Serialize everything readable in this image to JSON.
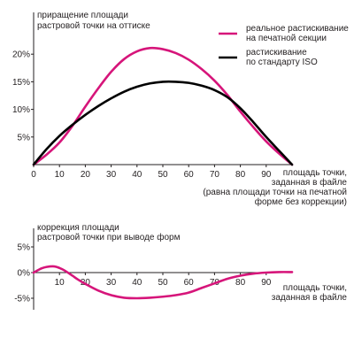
{
  "chart_data": [
    {
      "type": "line",
      "ylabel": [
        "приращение площади",
        "растровой точки на оттиске"
      ],
      "xlabel": [
        "площадь точки,",
        "заданная в файле",
        "(равна площади точки на печатной",
        "форме без коррекции)"
      ],
      "xlim": [
        0,
        100
      ],
      "ylim": [
        0,
        25
      ],
      "x_ticks": [
        0,
        10,
        20,
        30,
        40,
        50,
        60,
        70,
        80,
        90
      ],
      "y_ticks": [
        {
          "value": 5,
          "label": "5%"
        },
        {
          "value": 10,
          "label": "10%"
        },
        {
          "value": 15,
          "label": "15%"
        },
        {
          "value": 20,
          "label": "20%"
        }
      ],
      "legend_position": "top-right",
      "series": [
        {
          "name": [
            "реальное растискивание",
            "на печатной секции"
          ],
          "color": "#d6157a",
          "x": [
            0,
            5,
            10,
            15,
            20,
            25,
            30,
            35,
            40,
            45,
            50,
            55,
            60,
            65,
            70,
            75,
            80,
            85,
            90,
            95,
            100
          ],
          "y": [
            0,
            1.8,
            4.0,
            7.0,
            10.5,
            13.8,
            16.8,
            19.1,
            20.5,
            21.1,
            20.9,
            20.2,
            19.0,
            17.3,
            15.2,
            12.6,
            9.6,
            6.8,
            4.2,
            2.0,
            0
          ]
        },
        {
          "name": [
            "растискивание",
            "по стандарту ISO"
          ],
          "color": "#000000",
          "x": [
            0,
            5,
            10,
            15,
            20,
            25,
            30,
            35,
            40,
            45,
            50,
            55,
            60,
            65,
            70,
            75,
            80,
            85,
            90,
            95,
            100
          ],
          "y": [
            0,
            2.8,
            5.2,
            7.2,
            9.0,
            10.6,
            12.0,
            13.2,
            14.1,
            14.7,
            15.0,
            15.0,
            14.8,
            14.3,
            13.5,
            12.2,
            10.2,
            7.7,
            5.0,
            2.5,
            0
          ]
        }
      ]
    },
    {
      "type": "line",
      "ylabel": [
        "коррекция площади",
        "растровой точки при выводе форм"
      ],
      "xlabel": [
        "площадь точки,",
        "заданная в файле"
      ],
      "xlim": [
        0,
        100
      ],
      "ylim": [
        -7,
        7
      ],
      "x_ticks": [
        10,
        20,
        30,
        40,
        50,
        60,
        70,
        80,
        90
      ],
      "y_ticks": [
        {
          "value": 5,
          "label": "5%"
        },
        {
          "value": 0,
          "label": "0%"
        },
        {
          "value": -5,
          "label": "-5%"
        }
      ],
      "series": [
        {
          "color": "#d6157a",
          "x": [
            0,
            3,
            5,
            8,
            10,
            12,
            15,
            17,
            20,
            25,
            30,
            35,
            40,
            45,
            50,
            55,
            60,
            65,
            70,
            75,
            80,
            85,
            90,
            95,
            100
          ],
          "y": [
            0,
            0.8,
            1.1,
            1.2,
            0.9,
            0.4,
            -0.6,
            -1.3,
            -2.2,
            -3.5,
            -4.4,
            -4.9,
            -5.0,
            -4.9,
            -4.7,
            -4.4,
            -3.9,
            -3.0,
            -2.1,
            -1.2,
            -0.6,
            -0.2,
            0,
            0.1,
            0.1
          ]
        }
      ]
    }
  ]
}
